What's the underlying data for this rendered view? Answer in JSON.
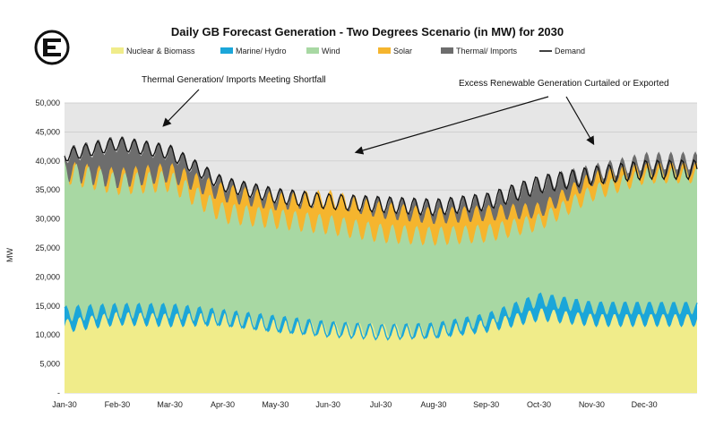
{
  "chart_data": {
    "type": "area",
    "title": "Daily GB Forecast Generation - Two Degrees Scenario (in MW) for 2030",
    "ylabel": "MW",
    "xlabel": "",
    "ylim": [
      0,
      50000
    ],
    "yticks": [
      "50,000",
      "45,000",
      "40,000",
      "35,000",
      "30,000",
      "25,000",
      "20,000",
      "15,000",
      "10,000",
      "5,000",
      "-"
    ],
    "x_tick_labels": [
      "Jan-30",
      "Feb-30",
      "Mar-30",
      "Apr-30",
      "May-30",
      "Jun-30",
      "Jul-30",
      "Aug-30",
      "Sep-30",
      "Oct-30",
      "Nov-30",
      "Dec-30"
    ],
    "grid": true,
    "legend_position": "top",
    "series": [
      {
        "name": "Nuclear & Biomass",
        "color": "#f0ec8a",
        "values": [
          11500,
          12800,
          12500,
          12700,
          11500,
          11000,
          10800,
          10500,
          11500,
          13500,
          12500,
          12500
        ]
      },
      {
        "name": "Marine/ Hydro",
        "color": "#1ba6d9",
        "values": [
          13500,
          14000,
          14000,
          13000,
          12000,
          11000,
          10500,
          10800,
          12500,
          16000,
          14500,
          14500
        ]
      },
      {
        "name": "Wind",
        "color": "#a8d8a3",
        "values": [
          38000,
          36000,
          36500,
          31000,
          30000,
          29000,
          27500,
          27000,
          27500,
          29500,
          34500,
          37500
        ]
      },
      {
        "name": "Solar",
        "color": "#f5b52e",
        "values": [
          38200,
          37000,
          38000,
          34500,
          33000,
          33500,
          31500,
          30500,
          31000,
          31500,
          37000,
          38500
        ]
      },
      {
        "name": "Thermal/ Imports",
        "color": "#6d6d6d",
        "values": [
          41000,
          43000,
          41500,
          36000,
          34000,
          33000,
          32500,
          32000,
          33000,
          36000,
          38000,
          40000
        ]
      },
      {
        "name": "Demand",
        "color": "#111111",
        "values": [
          41000,
          43000,
          41500,
          36000,
          34000,
          33000,
          32500,
          32000,
          33000,
          36000,
          37500,
          38500
        ]
      }
    ],
    "annotations": [
      {
        "text": "Thermal Generation/ Imports  Meeting Shortfall"
      },
      {
        "text": "Excess Renewable Generation Curtailed or Exported"
      }
    ]
  }
}
